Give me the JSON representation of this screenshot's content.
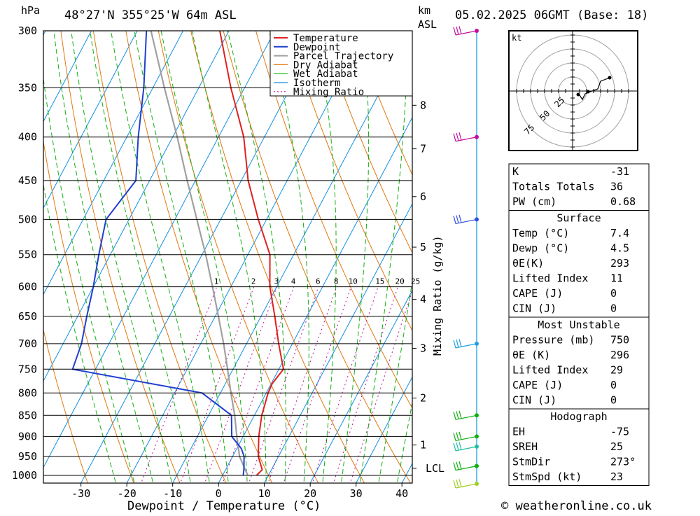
{
  "header": {
    "pressure_unit": "hPa",
    "location": "48°27'N 355°25'W 64m ASL",
    "height_unit_line1": "km",
    "height_unit_line2": "ASL",
    "datetime": "05.02.2025 06GMT (Base: 18)"
  },
  "footer": {
    "copyright": "© weatheronline.co.uk"
  },
  "colors": {
    "temperature": "#e02020",
    "dewpoint": "#1f3fd0",
    "parcel": "#a0a0a0",
    "dry_adiabat": "#e07810",
    "wet_adiabat": "#10b010",
    "isotherm": "#1090e0",
    "mixing_ratio": "#c0109f",
    "wind_profile": "#20a0e0"
  },
  "chart_data": {
    "type": "skew-t",
    "xlabel": "Dewpoint / Temperature (°C)",
    "ylabel_left": "hPa",
    "ylabel_mixing": "Mixing Ratio (g/kg)",
    "pressure_levels": [
      300,
      350,
      400,
      450,
      500,
      550,
      600,
      650,
      700,
      750,
      800,
      850,
      900,
      950,
      1000
    ],
    "x_ticks": [
      -30,
      -20,
      -10,
      0,
      10,
      20,
      30,
      40
    ],
    "height_km_ticks": [
      {
        "label": "8",
        "p": 367
      },
      {
        "label": "7",
        "p": 413
      },
      {
        "label": "6",
        "p": 470
      },
      {
        "label": "5",
        "p": 539
      },
      {
        "label": "4",
        "p": 621
      },
      {
        "label": "3",
        "p": 709
      },
      {
        "label": "2",
        "p": 811
      },
      {
        "label": "1",
        "p": 921
      },
      {
        "label": "LCL",
        "p": 981
      }
    ],
    "mixing_ratio_labels": [
      "1",
      "2",
      "3",
      "4",
      "6",
      "8",
      "10",
      "15",
      "20",
      "25"
    ],
    "legend": [
      "Temperature",
      "Dewpoint",
      "Parcel Trajectory",
      "Dry Adiabat",
      "Wet Adiabat",
      "Isotherm",
      "Mixing Ratio"
    ],
    "temperature": [
      {
        "p": 1000,
        "t": 7.4
      },
      {
        "p": 985,
        "t": 8.0
      },
      {
        "p": 950,
        "t": 5.6
      },
      {
        "p": 900,
        "t": 3.4
      },
      {
        "p": 850,
        "t": 1.6
      },
      {
        "p": 800,
        "t": 0.4
      },
      {
        "p": 780,
        "t": 0.2
      },
      {
        "p": 750,
        "t": 1.0
      },
      {
        "p": 700,
        "t": -3.0
      },
      {
        "p": 650,
        "t": -7.0
      },
      {
        "p": 600,
        "t": -11.5
      },
      {
        "p": 550,
        "t": -15.2
      },
      {
        "p": 500,
        "t": -21.8
      },
      {
        "p": 450,
        "t": -28.5
      },
      {
        "p": 400,
        "t": -34.5
      },
      {
        "p": 350,
        "t": -43.0
      },
      {
        "p": 300,
        "t": -52.0
      }
    ],
    "dewpoint": [
      {
        "p": 1000,
        "t": 4.5
      },
      {
        "p": 985,
        "t": 4.0
      },
      {
        "p": 950,
        "t": 2.5
      },
      {
        "p": 930,
        "t": 1.0
      },
      {
        "p": 900,
        "t": -2.5
      },
      {
        "p": 850,
        "t": -5.0
      },
      {
        "p": 800,
        "t": -14.0
      },
      {
        "p": 750,
        "t": -45.0
      },
      {
        "p": 700,
        "t": -46.0
      },
      {
        "p": 650,
        "t": -48.0
      },
      {
        "p": 600,
        "t": -50.0
      },
      {
        "p": 550,
        "t": -52.5
      },
      {
        "p": 500,
        "t": -55.0
      },
      {
        "p": 450,
        "t": -53.0
      },
      {
        "p": 400,
        "t": -57.5
      },
      {
        "p": 350,
        "t": -62.0
      },
      {
        "p": 300,
        "t": -68.0
      }
    ],
    "parcel": [
      {
        "p": 1000,
        "t": 5.5
      },
      {
        "p": 950,
        "t": 1.5
      },
      {
        "p": 900,
        "t": -1.4
      },
      {
        "p": 850,
        "t": -4.3
      },
      {
        "p": 800,
        "t": -7.7
      },
      {
        "p": 750,
        "t": -11.2
      },
      {
        "p": 700,
        "t": -15.0
      },
      {
        "p": 650,
        "t": -19.3
      },
      {
        "p": 600,
        "t": -24.0
      },
      {
        "p": 550,
        "t": -29.2
      },
      {
        "p": 500,
        "t": -35.2
      },
      {
        "p": 450,
        "t": -41.8
      },
      {
        "p": 400,
        "t": -49.0
      },
      {
        "p": 350,
        "t": -57.5
      },
      {
        "p": 300,
        "t": -67.0
      }
    ],
    "wind_barbs": [
      {
        "p": 300,
        "color": "#c0109f"
      },
      {
        "p": 400,
        "color": "#c0109f"
      },
      {
        "p": 500,
        "color": "#3050e0"
      },
      {
        "p": 700,
        "color": "#20a0e0"
      },
      {
        "p": 850,
        "color": "#10b010"
      },
      {
        "p": 900,
        "color": "#10b010"
      },
      {
        "p": 925,
        "color": "#20c0a0"
      },
      {
        "p": 975,
        "color": "#10b010"
      },
      {
        "p": 1000,
        "color": "#a0d020"
      }
    ]
  },
  "hodograph": {
    "unit": "kt",
    "ring_labels": [
      "25",
      "50",
      "75"
    ]
  },
  "indices": {
    "general": [
      {
        "label": "K",
        "value": "-31"
      },
      {
        "label": "Totals Totals",
        "value": "36"
      },
      {
        "label": "PW (cm)",
        "value": "0.68"
      }
    ],
    "surface": {
      "title": "Surface",
      "rows": [
        {
          "label": "Temp (°C)",
          "value": "7.4"
        },
        {
          "label": "Dewp (°C)",
          "value": "4.5"
        },
        {
          "label": "θE(K)",
          "value": "293"
        },
        {
          "label": "Lifted Index",
          "value": "11"
        },
        {
          "label": "CAPE (J)",
          "value": "0"
        },
        {
          "label": "CIN (J)",
          "value": "0"
        }
      ]
    },
    "most_unstable": {
      "title": "Most Unstable",
      "rows": [
        {
          "label": "Pressure (mb)",
          "value": "750"
        },
        {
          "label": "θE (K)",
          "value": "296"
        },
        {
          "label": "Lifted Index",
          "value": "29"
        },
        {
          "label": "CAPE (J)",
          "value": "0"
        },
        {
          "label": "CIN (J)",
          "value": "0"
        }
      ]
    },
    "hodograph": {
      "title": "Hodograph",
      "rows": [
        {
          "label": "EH",
          "value": "-75"
        },
        {
          "label": "SREH",
          "value": "25"
        },
        {
          "label": "StmDir",
          "value": "273°"
        },
        {
          "label": "StmSpd (kt)",
          "value": "23"
        }
      ]
    }
  }
}
